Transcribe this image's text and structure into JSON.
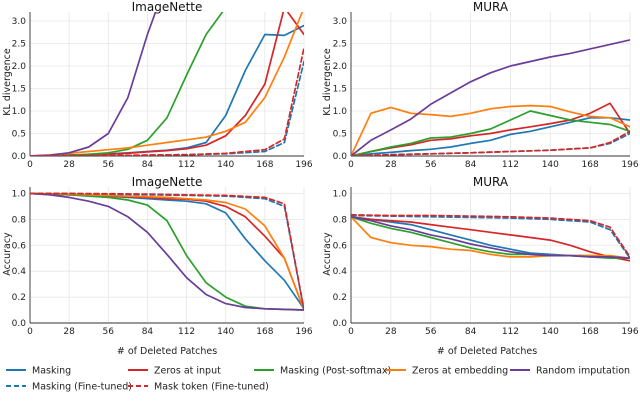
{
  "figure": {
    "xlabel": "# of Deleted Patches",
    "ylabel_top": "KL divergence",
    "ylabel_bottom": "Accuracy"
  },
  "legend": [
    {
      "label": "Masking",
      "color": "#1f77b4",
      "dash": false
    },
    {
      "label": "Zeros at input",
      "color": "#d62728",
      "dash": false
    },
    {
      "label": "Masking (Post-softmax)",
      "color": "#2ca02c",
      "dash": false
    },
    {
      "label": "Zeros at embedding",
      "color": "#ff7f0e",
      "dash": false
    },
    {
      "label": "Random imputation",
      "color": "#6a3d9a",
      "dash": false
    },
    {
      "label": "Masking (Fine-tuned)",
      "color": "#1f77b4",
      "dash": true
    },
    {
      "label": "Mask token (Fine-tuned)",
      "color": "#d62728",
      "dash": true
    }
  ],
  "chart_data": [
    {
      "type": "line",
      "title": "ImageNette",
      "xlabel": "",
      "ylabel": "KL divergence",
      "xlim": [
        0,
        196
      ],
      "ylim": [
        0,
        3.2
      ],
      "xticks": [
        0,
        28,
        56,
        84,
        112,
        140,
        168,
        196
      ],
      "yticks": [
        0.0,
        0.5,
        1.0,
        1.5,
        2.0,
        2.5,
        3.0
      ],
      "series": [
        {
          "name": "Masking",
          "x": [
            0,
            14,
            28,
            42,
            56,
            70,
            84,
            98,
            112,
            126,
            140,
            154,
            168,
            182,
            196
          ],
          "y": [
            0,
            0.01,
            0.02,
            0.03,
            0.05,
            0.07,
            0.1,
            0.13,
            0.18,
            0.3,
            0.9,
            1.9,
            2.7,
            2.68,
            2.9
          ]
        },
        {
          "name": "Zeros at input",
          "x": [
            0,
            14,
            28,
            42,
            56,
            70,
            84,
            98,
            112,
            126,
            140,
            154,
            168,
            182,
            196
          ],
          "y": [
            0,
            0.01,
            0.02,
            0.03,
            0.04,
            0.06,
            0.09,
            0.12,
            0.16,
            0.24,
            0.45,
            0.9,
            1.6,
            3.3,
            2.7
          ]
        },
        {
          "name": "Masking (Post-softmax)",
          "x": [
            0,
            14,
            28,
            42,
            56,
            70,
            84,
            98,
            112,
            126,
            140
          ],
          "y": [
            0,
            0.01,
            0.02,
            0.04,
            0.07,
            0.15,
            0.35,
            0.85,
            1.8,
            2.7,
            3.3
          ]
        },
        {
          "name": "Zeros at embedding",
          "x": [
            0,
            14,
            28,
            42,
            56,
            70,
            84,
            98,
            112,
            126,
            140,
            154,
            168,
            182,
            196
          ],
          "y": [
            0,
            0.02,
            0.06,
            0.1,
            0.14,
            0.18,
            0.24,
            0.3,
            0.36,
            0.42,
            0.55,
            0.75,
            1.3,
            2.2,
            3.3
          ]
        },
        {
          "name": "Random imputation",
          "x": [
            0,
            14,
            28,
            42,
            56,
            70,
            84,
            91
          ],
          "y": [
            0,
            0.02,
            0.07,
            0.2,
            0.5,
            1.3,
            2.7,
            3.3
          ]
        },
        {
          "name": "Masking (Fine-tuned)",
          "x": [
            0,
            28,
            56,
            84,
            112,
            140,
            168,
            182,
            196
          ],
          "y": [
            0,
            0.01,
            0.01,
            0.02,
            0.03,
            0.05,
            0.1,
            0.3,
            2.1
          ]
        },
        {
          "name": "Mask token (Fine-tuned)",
          "x": [
            0,
            28,
            56,
            84,
            112,
            140,
            168,
            182,
            196
          ],
          "y": [
            0,
            0.01,
            0.01,
            0.02,
            0.03,
            0.06,
            0.14,
            0.38,
            2.4
          ]
        }
      ]
    },
    {
      "type": "line",
      "title": "MURA",
      "xlabel": "",
      "ylabel": "KL divergence",
      "xlim": [
        0,
        196
      ],
      "ylim": [
        0,
        3.2
      ],
      "xticks": [
        0,
        28,
        56,
        84,
        112,
        140,
        168,
        196
      ],
      "yticks": [
        0.0,
        0.5,
        1.0,
        1.5,
        2.0,
        2.5,
        3.0
      ],
      "series": [
        {
          "name": "Masking",
          "x": [
            0,
            14,
            28,
            42,
            56,
            70,
            84,
            98,
            112,
            126,
            140,
            154,
            168,
            182,
            196
          ],
          "y": [
            0,
            0.05,
            0.08,
            0.12,
            0.15,
            0.2,
            0.28,
            0.35,
            0.48,
            0.55,
            0.65,
            0.75,
            0.85,
            0.85,
            0.8
          ]
        },
        {
          "name": "Zeros at input",
          "x": [
            0,
            14,
            28,
            42,
            56,
            70,
            84,
            98,
            112,
            126,
            140,
            154,
            168,
            182,
            196
          ],
          "y": [
            0,
            0.1,
            0.18,
            0.25,
            0.35,
            0.38,
            0.45,
            0.5,
            0.58,
            0.65,
            0.72,
            0.8,
            0.95,
            1.17,
            0.5
          ]
        },
        {
          "name": "Masking (Post-softmax)",
          "x": [
            0,
            14,
            28,
            42,
            56,
            70,
            84,
            98,
            112,
            126,
            140,
            154,
            168,
            182,
            196
          ],
          "y": [
            0,
            0.1,
            0.2,
            0.28,
            0.4,
            0.42,
            0.5,
            0.6,
            0.8,
            1.0,
            0.9,
            0.8,
            0.75,
            0.7,
            0.55
          ]
        },
        {
          "name": "Zeros at embedding",
          "x": [
            0,
            14,
            28,
            42,
            56,
            70,
            84,
            98,
            112,
            126,
            140,
            154,
            168,
            182,
            196
          ],
          "y": [
            0,
            0.95,
            1.08,
            0.95,
            0.92,
            0.88,
            0.95,
            1.05,
            1.1,
            1.12,
            1.1,
            0.98,
            0.88,
            0.85,
            0.65
          ]
        },
        {
          "name": "Random imputation",
          "x": [
            0,
            14,
            28,
            42,
            56,
            70,
            84,
            98,
            112,
            126,
            140,
            154,
            168,
            182,
            196
          ],
          "y": [
            0,
            0.35,
            0.58,
            0.82,
            1.15,
            1.4,
            1.65,
            1.85,
            2.0,
            2.1,
            2.2,
            2.28,
            2.38,
            2.48,
            2.58
          ]
        },
        {
          "name": "Masking (Fine-tuned)",
          "x": [
            0,
            28,
            56,
            84,
            112,
            140,
            168,
            182,
            196
          ],
          "y": [
            0,
            0.03,
            0.05,
            0.07,
            0.1,
            0.13,
            0.18,
            0.28,
            0.5
          ]
        },
        {
          "name": "Mask token (Fine-tuned)",
          "x": [
            0,
            28,
            56,
            84,
            112,
            140,
            168,
            182,
            196
          ],
          "y": [
            0,
            0.03,
            0.05,
            0.07,
            0.1,
            0.13,
            0.18,
            0.3,
            0.55
          ]
        }
      ]
    },
    {
      "type": "line",
      "title": "ImageNette",
      "xlabel": "# of Deleted Patches",
      "ylabel": "Accuracy",
      "xlim": [
        0,
        196
      ],
      "ylim": [
        0,
        1.05
      ],
      "xticks": [
        0,
        28,
        56,
        84,
        112,
        140,
        168,
        196
      ],
      "yticks": [
        0.0,
        0.2,
        0.4,
        0.6,
        0.8,
        1.0
      ],
      "series": [
        {
          "name": "Masking",
          "x": [
            0,
            14,
            28,
            42,
            56,
            70,
            84,
            98,
            112,
            126,
            140,
            154,
            168,
            182,
            196
          ],
          "y": [
            1.0,
            0.995,
            0.99,
            0.985,
            0.98,
            0.97,
            0.96,
            0.95,
            0.94,
            0.92,
            0.85,
            0.65,
            0.48,
            0.33,
            0.11
          ]
        },
        {
          "name": "Zeros at input",
          "x": [
            0,
            14,
            28,
            42,
            56,
            70,
            84,
            98,
            112,
            126,
            140,
            154,
            168,
            182,
            196
          ],
          "y": [
            1.0,
            0.995,
            0.99,
            0.985,
            0.98,
            0.975,
            0.97,
            0.96,
            0.955,
            0.94,
            0.9,
            0.82,
            0.67,
            0.5,
            0.1
          ]
        },
        {
          "name": "Masking (Post-softmax)",
          "x": [
            0,
            14,
            28,
            42,
            56,
            70,
            84,
            98,
            112,
            126,
            140,
            154,
            168,
            182,
            196
          ],
          "y": [
            1.0,
            0.995,
            0.99,
            0.98,
            0.97,
            0.95,
            0.91,
            0.79,
            0.52,
            0.31,
            0.2,
            0.13,
            0.11,
            0.105,
            0.1
          ]
        },
        {
          "name": "Zeros at embedding",
          "x": [
            0,
            14,
            28,
            42,
            56,
            70,
            84,
            98,
            112,
            126,
            140,
            154,
            168,
            182,
            196
          ],
          "y": [
            1.0,
            0.998,
            0.995,
            0.99,
            0.985,
            0.98,
            0.975,
            0.97,
            0.96,
            0.95,
            0.93,
            0.88,
            0.75,
            0.5,
            0.1
          ]
        },
        {
          "name": "Random imputation",
          "x": [
            0,
            14,
            28,
            42,
            56,
            70,
            84,
            98,
            112,
            126,
            140,
            154,
            168,
            182,
            196
          ],
          "y": [
            1.0,
            0.99,
            0.97,
            0.94,
            0.9,
            0.82,
            0.7,
            0.53,
            0.35,
            0.22,
            0.15,
            0.12,
            0.11,
            0.105,
            0.1
          ]
        },
        {
          "name": "Masking (Fine-tuned)",
          "x": [
            0,
            28,
            56,
            84,
            112,
            140,
            168,
            182,
            196
          ],
          "y": [
            1.0,
            1.0,
            0.995,
            0.99,
            0.985,
            0.98,
            0.96,
            0.9,
            0.1
          ]
        },
        {
          "name": "Mask token (Fine-tuned)",
          "x": [
            0,
            28,
            56,
            84,
            112,
            140,
            168,
            182,
            196
          ],
          "y": [
            1.0,
            1.0,
            0.998,
            0.995,
            0.99,
            0.985,
            0.97,
            0.92,
            0.1
          ]
        }
      ]
    },
    {
      "type": "line",
      "title": "MURA",
      "xlabel": "# of Deleted Patches",
      "ylabel": "Accuracy",
      "xlim": [
        0,
        196
      ],
      "ylim": [
        0,
        1.05
      ],
      "xticks": [
        0,
        28,
        56,
        84,
        112,
        140,
        168,
        196
      ],
      "yticks": [
        0.0,
        0.2,
        0.4,
        0.6,
        0.8,
        1.0
      ],
      "series": [
        {
          "name": "Masking",
          "x": [
            0,
            14,
            28,
            42,
            56,
            70,
            84,
            98,
            112,
            126,
            140,
            154,
            168,
            182,
            196
          ],
          "y": [
            0.82,
            0.8,
            0.78,
            0.76,
            0.72,
            0.68,
            0.64,
            0.6,
            0.57,
            0.54,
            0.53,
            0.52,
            0.52,
            0.51,
            0.5
          ]
        },
        {
          "name": "Zeros at input",
          "x": [
            0,
            14,
            28,
            42,
            56,
            70,
            84,
            98,
            112,
            126,
            140,
            154,
            168,
            182,
            196
          ],
          "y": [
            0.82,
            0.8,
            0.79,
            0.78,
            0.76,
            0.74,
            0.72,
            0.7,
            0.68,
            0.66,
            0.64,
            0.6,
            0.55,
            0.51,
            0.48
          ]
        },
        {
          "name": "Masking (Post-softmax)",
          "x": [
            0,
            14,
            28,
            42,
            56,
            70,
            84,
            98,
            112,
            126,
            140,
            154,
            168,
            182,
            196
          ],
          "y": [
            0.82,
            0.77,
            0.73,
            0.7,
            0.66,
            0.62,
            0.58,
            0.55,
            0.53,
            0.53,
            0.52,
            0.52,
            0.51,
            0.5,
            0.5
          ]
        },
        {
          "name": "Zeros at embedding",
          "x": [
            0,
            14,
            28,
            42,
            56,
            70,
            84,
            98,
            112,
            126,
            140,
            154,
            168,
            182,
            196
          ],
          "y": [
            0.82,
            0.66,
            0.62,
            0.6,
            0.59,
            0.57,
            0.56,
            0.53,
            0.51,
            0.51,
            0.52,
            0.52,
            0.52,
            0.52,
            0.5
          ]
        },
        {
          "name": "Random imputation",
          "x": [
            0,
            14,
            28,
            42,
            56,
            70,
            84,
            98,
            112,
            126,
            140,
            154,
            168,
            182,
            196
          ],
          "y": [
            0.82,
            0.79,
            0.75,
            0.72,
            0.68,
            0.65,
            0.61,
            0.58,
            0.55,
            0.53,
            0.52,
            0.52,
            0.51,
            0.51,
            0.5
          ]
        },
        {
          "name": "Masking (Fine-tuned)",
          "x": [
            0,
            28,
            56,
            84,
            112,
            140,
            168,
            182,
            196
          ],
          "y": [
            0.83,
            0.825,
            0.82,
            0.815,
            0.81,
            0.8,
            0.78,
            0.72,
            0.5
          ]
        },
        {
          "name": "Mask token (Fine-tuned)",
          "x": [
            0,
            28,
            56,
            84,
            112,
            140,
            168,
            182,
            196
          ],
          "y": [
            0.835,
            0.83,
            0.83,
            0.825,
            0.82,
            0.81,
            0.79,
            0.74,
            0.51
          ]
        }
      ]
    }
  ]
}
